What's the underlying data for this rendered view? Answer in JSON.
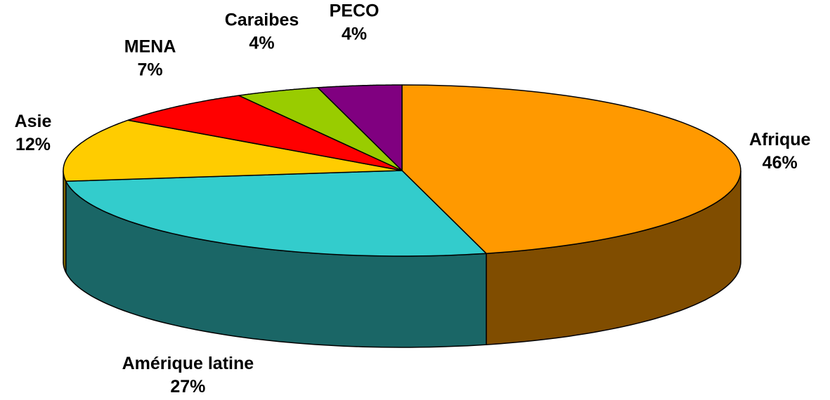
{
  "chart_data": {
    "type": "pie",
    "categories": [
      "Afrique",
      "Amérique latine",
      "Asie",
      "MENA",
      "Caraibes",
      "PECO"
    ],
    "values": [
      46,
      27,
      12,
      7,
      4,
      4
    ],
    "value_labels": [
      "46%",
      "27%",
      "12%",
      "7%",
      "4%",
      "4%"
    ],
    "colors": [
      "#ff9900",
      "#33cccc",
      "#ffcc00",
      "#ff0000",
      "#99cc00",
      "#800080"
    ],
    "three_d": true
  }
}
